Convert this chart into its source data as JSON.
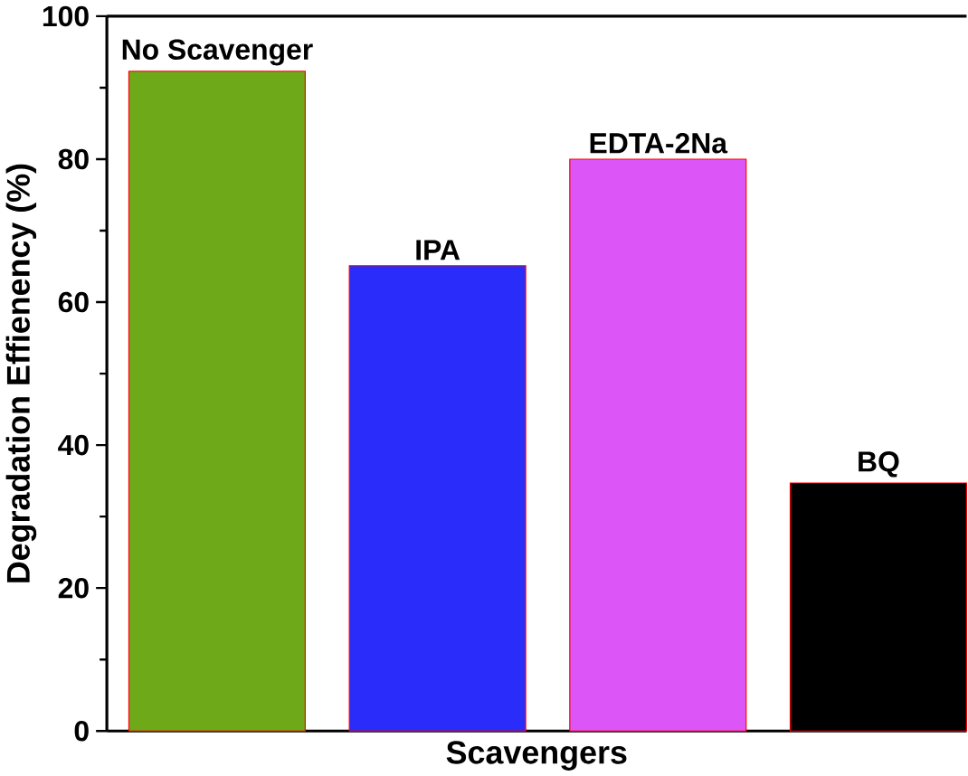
{
  "chart_data": {
    "type": "bar",
    "xlabel": "Scavengers",
    "ylabel": "Degradation Effienency (%)",
    "categories": [
      "No Scavenger",
      "IPA",
      "EDTA-2Na",
      "BQ"
    ],
    "values": [
      92.3,
      65.1,
      80.0,
      34.7
    ],
    "colors": [
      "#6da918",
      "#2a2cfa",
      "#dc56f7",
      "#000000"
    ],
    "ylim": [
      0,
      100
    ],
    "yticks": [
      0,
      20,
      40,
      60,
      80,
      100
    ],
    "grid": false
  }
}
